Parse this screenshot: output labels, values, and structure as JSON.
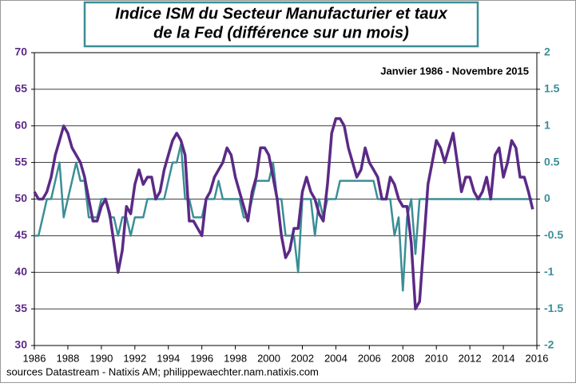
{
  "chart_data": {
    "type": "line",
    "title": "Indice ISM du Secteur Manufacturier et taux",
    "subtitle": "de la Fed (différence sur un mois)",
    "annotation": "Janvier 1986 - Novembre 2015",
    "source": "sources Datastream - Natixis AM; philippewaechter.nam.natixis.com",
    "x": [
      1986,
      1986.25,
      1986.5,
      1986.75,
      1987,
      1987.25,
      1987.5,
      1987.75,
      1988,
      1988.25,
      1988.5,
      1988.75,
      1989,
      1989.25,
      1989.5,
      1989.75,
      1990,
      1990.25,
      1990.5,
      1990.75,
      1991,
      1991.25,
      1991.5,
      1991.75,
      1992,
      1992.25,
      1992.5,
      1992.75,
      1993,
      1993.25,
      1993.5,
      1993.75,
      1994,
      1994.25,
      1994.5,
      1994.75,
      1995,
      1995.25,
      1995.5,
      1995.75,
      1996,
      1996.25,
      1996.5,
      1996.75,
      1997,
      1997.25,
      1997.5,
      1997.75,
      1998,
      1998.25,
      1998.5,
      1998.75,
      1999,
      1999.25,
      1999.5,
      1999.75,
      2000,
      2000.25,
      2000.5,
      2000.75,
      2001,
      2001.25,
      2001.5,
      2001.75,
      2002,
      2002.25,
      2002.5,
      2002.75,
      2003,
      2003.25,
      2003.5,
      2003.75,
      2004,
      2004.25,
      2004.5,
      2004.75,
      2005,
      2005.25,
      2005.5,
      2005.75,
      2006,
      2006.25,
      2006.5,
      2006.75,
      2007,
      2007.25,
      2007.5,
      2007.75,
      2008,
      2008.25,
      2008.5,
      2008.75,
      2009,
      2009.25,
      2009.5,
      2009.75,
      2010,
      2010.25,
      2010.5,
      2010.75,
      2011,
      2011.25,
      2011.5,
      2011.75,
      2012,
      2012.25,
      2012.5,
      2012.75,
      2013,
      2013.25,
      2013.5,
      2013.75,
      2014,
      2014.25,
      2014.5,
      2014.75,
      2015,
      2015.25,
      2015.5,
      2015.75
    ],
    "series": [
      {
        "name": "Indice ISM",
        "color": "#5b2a86",
        "axis": "y",
        "values": [
          51,
          50,
          50,
          51,
          53,
          56,
          58,
          60,
          59,
          57,
          56,
          55,
          53,
          50,
          47,
          47,
          49,
          50,
          48,
          44,
          40,
          43,
          49,
          48,
          52,
          54,
          52,
          53,
          53,
          50,
          51,
          54,
          56,
          58,
          59,
          58,
          56,
          47,
          47,
          46,
          45,
          50,
          51,
          53,
          54,
          55,
          57,
          56,
          53,
          51,
          49,
          47,
          51,
          53,
          57,
          57,
          56,
          53,
          50,
          45,
          42,
          43,
          46,
          46,
          51,
          53,
          51,
          50,
          48,
          47,
          52,
          59,
          61,
          61,
          60,
          57,
          55,
          53,
          54,
          57,
          55,
          54,
          53,
          50,
          50,
          53,
          52,
          50,
          49,
          49,
          44,
          35,
          36,
          44,
          52,
          55,
          58,
          57,
          55,
          57,
          59,
          55,
          51,
          53,
          53,
          51,
          50,
          51,
          53,
          50,
          56,
          57,
          53,
          55,
          58,
          57,
          53,
          53,
          51,
          48.6
        ]
      },
      {
        "name": "Taux de la Fed",
        "color": "#3b8e96",
        "axis": "y2",
        "values": [
          -0.5,
          -0.5,
          -0.25,
          0,
          0,
          0.25,
          0.5,
          -0.25,
          0,
          0.25,
          0.5,
          0.25,
          0.25,
          -0.25,
          -0.25,
          -0.25,
          0,
          0,
          -0.25,
          -0.25,
          -0.5,
          -0.25,
          -0.25,
          -0.5,
          -0.25,
          -0.25,
          -0.25,
          0,
          0,
          0,
          0,
          0,
          0.25,
          0.5,
          0.5,
          0.75,
          0,
          0,
          -0.25,
          -0.25,
          -0.25,
          0,
          0,
          0,
          0.25,
          0,
          0,
          0,
          0,
          0,
          -0.25,
          -0.25,
          0,
          0.25,
          0.25,
          0.25,
          0.25,
          0.5,
          0,
          0,
          -0.5,
          -0.5,
          -0.5,
          -1,
          0,
          0,
          0,
          -0.5,
          0,
          -0.25,
          0,
          0,
          0,
          0.25,
          0.25,
          0.25,
          0.25,
          0.25,
          0.25,
          0.25,
          0.25,
          0.25,
          0,
          0,
          0,
          0,
          -0.5,
          -0.25,
          -1.25,
          -0.25,
          0,
          -0.75,
          0,
          0,
          0,
          0,
          0,
          0,
          0,
          0,
          0,
          0,
          0,
          0,
          0,
          0,
          0,
          0,
          0,
          0,
          0,
          0,
          0,
          0,
          0,
          0,
          0,
          0,
          0,
          0
        ]
      }
    ],
    "xlim": [
      1986,
      2016
    ],
    "xticks": [
      1986,
      1988,
      1990,
      1992,
      1994,
      1996,
      1998,
      2000,
      2002,
      2004,
      2006,
      2008,
      2010,
      2012,
      2014,
      2016
    ],
    "ylim": [
      30,
      70
    ],
    "yticks": [
      30,
      35,
      40,
      45,
      50,
      55,
      60,
      65,
      70
    ],
    "y2lim": [
      -2,
      2
    ],
    "y2ticks": [
      -2,
      -1.5,
      -1,
      -0.5,
      0,
      0.5,
      1,
      1.5,
      2
    ],
    "grid": true
  }
}
